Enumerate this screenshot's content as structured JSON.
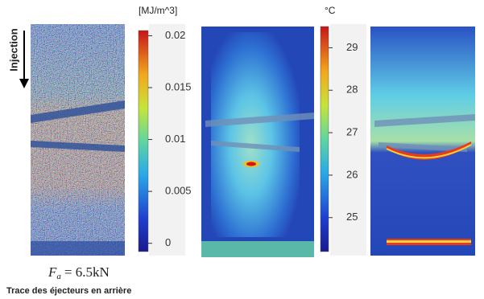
{
  "injection_label": "Injection",
  "colorbar1": {
    "unit": "[MJ/m^3]",
    "lim": [
      -0.0008,
      0.0205
    ],
    "ticks": [
      0,
      0.005,
      0.01,
      0.015,
      0.02
    ]
  },
  "colorbar2": {
    "unit": "°C",
    "lim": [
      24.2,
      29.5
    ],
    "ticks": [
      25,
      26,
      27,
      28,
      29
    ]
  },
  "formula": {
    "symbol": "F",
    "subscript": "a",
    "rest": "= 6.5kN"
  },
  "caption": "Trace des éjecteurs en arrière"
}
